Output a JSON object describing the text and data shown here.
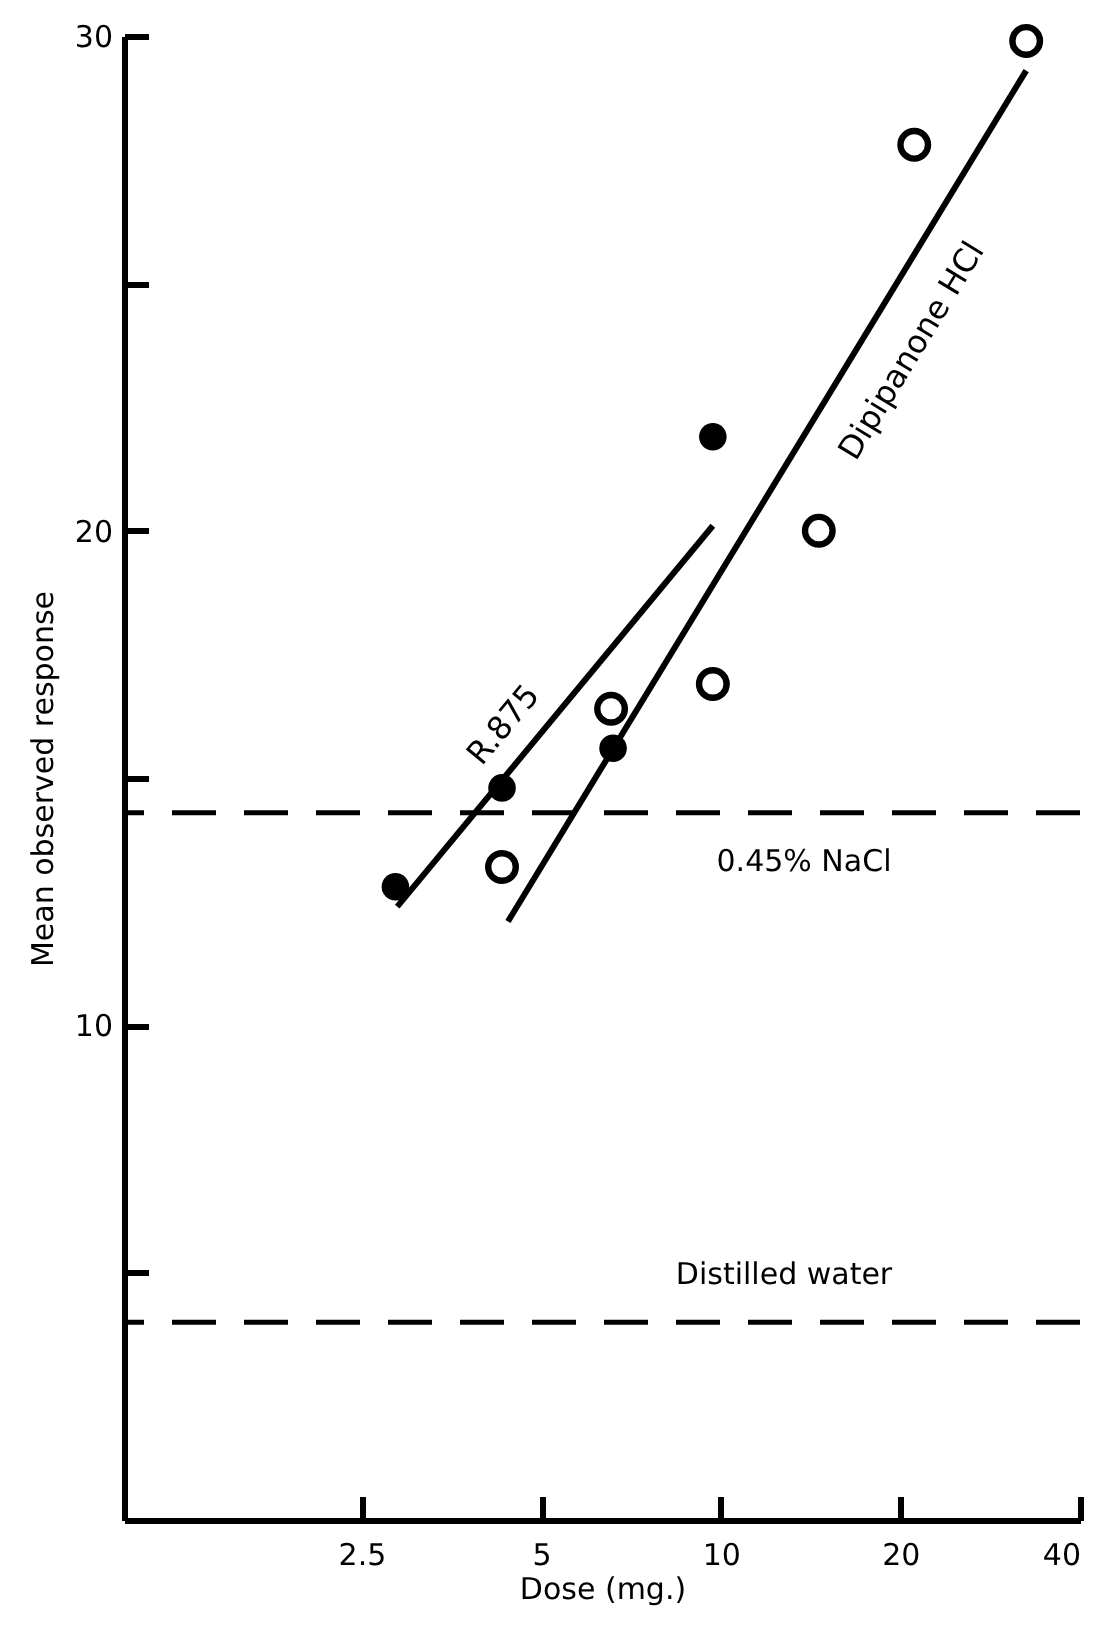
{
  "chart_data": {
    "type": "scatter",
    "xlabel": "Dose (mg.)",
    "ylabel": "Mean observed response",
    "log": "x",
    "xlim": [
      1,
      40
    ],
    "xticks": [
      2.5,
      5,
      10,
      20,
      40
    ],
    "ylim": [
      0,
      30
    ],
    "yticks": [
      {
        "value": 5,
        "label": null
      },
      10,
      {
        "value": 15,
        "label": null
      },
      20,
      {
        "value": 25,
        "label": null
      },
      30
    ],
    "grid": false,
    "marker": "circle",
    "series": [
      {
        "name": "R.875",
        "color": "#000000",
        "x": [
          2.85,
          4.3,
          6.6,
          9.7
        ],
        "values": [
          12.8,
          14.8,
          15.6,
          21.9
        ]
      },
      {
        "name": "Dipipanone HCl",
        "color": "#000000",
        "x": [
          4.3,
          6.55,
          9.7,
          14.6,
          21.1,
          32.5
        ],
        "values": [
          13.2,
          16.4,
          16.9,
          20.0,
          27.8,
          29.9
        ]
      },
      {
        "type": "line",
        "marker": "none",
        "color": "#000000",
        "x": [
          2.87,
          9.7
        ],
        "values": [
          12.4,
          20.1
        ]
      },
      {
        "type": "line",
        "marker": "none",
        "color": "#000000",
        "x": [
          4.4,
          32.5
        ],
        "values": [
          12.1,
          29.3
        ]
      }
    ],
    "ref_lines": [
      {
        "axis": "y",
        "value": 14.3,
        "label": "0.45% NaCl",
        "line_style": "dashed"
      },
      {
        "axis": "y",
        "value": 4.0,
        "label": "Distilled water",
        "line_style": "dashed"
      }
    ]
  }
}
